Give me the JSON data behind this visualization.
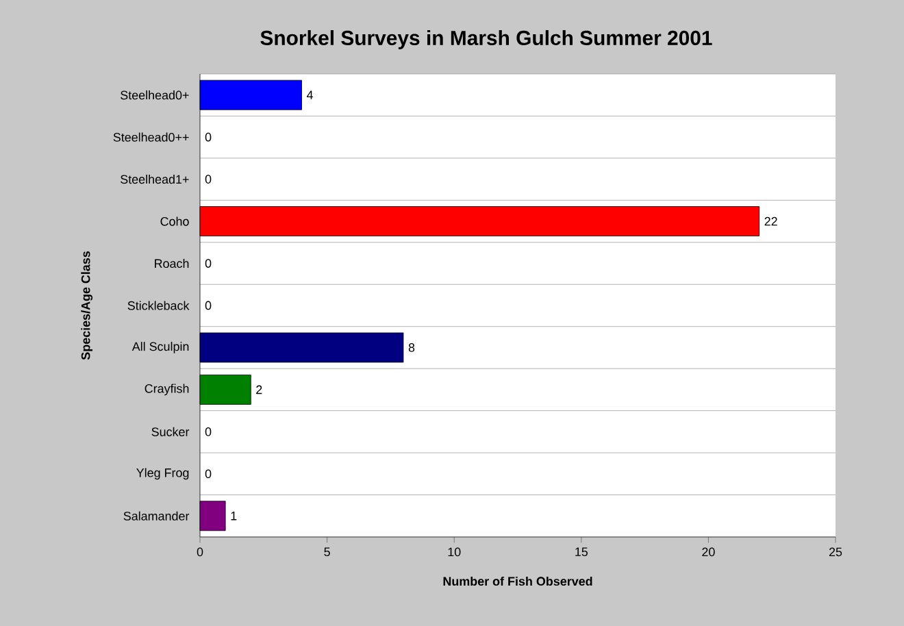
{
  "chart_data": {
    "type": "bar",
    "orientation": "horizontal",
    "title": "Snorkel Surveys in Marsh Gulch Summer 2001",
    "xlabel": "Number of Fish Observed",
    "ylabel": "Species/Age Class",
    "categories": [
      "Steelhead0+",
      "Steelhead0++",
      "Steelhead1+",
      "Coho",
      "Roach",
      "Stickleback",
      "All Sculpin",
      "Crayfish",
      "Sucker",
      "Yleg Frog",
      "Salamander"
    ],
    "values": [
      4,
      0,
      0,
      22,
      0,
      0,
      8,
      2,
      0,
      0,
      1
    ],
    "colors": [
      "#0000ff",
      null,
      null,
      "#ff0000",
      null,
      null,
      "#000080",
      "#008000",
      null,
      null,
      "#800080"
    ],
    "xlim": [
      0,
      25
    ],
    "xticks": [
      0,
      5,
      10,
      15,
      20,
      25
    ],
    "grid": "y",
    "data_labels": true
  }
}
